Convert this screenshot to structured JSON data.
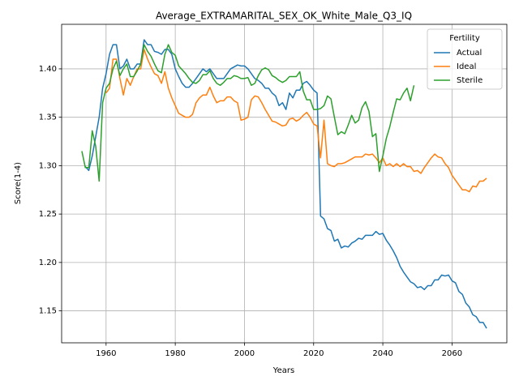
{
  "chart_data": {
    "type": "line",
    "title": "Average_EXTRAMARITAL_SEX_OK_White_Male_Q3_IQ",
    "xlabel": "Years",
    "ylabel": "Score(1-4)",
    "legend_title": "Fertility",
    "legend": "upper right",
    "grid": true,
    "xlim": [
      1947.15,
      2075.85
    ],
    "ylim": [
      1.117,
      1.446
    ],
    "xticks": [
      1960,
      1980,
      2000,
      2020,
      2040,
      2060
    ],
    "yticks": [
      1.15,
      {
        "value": 1.2,
        "label": "1.20"
      },
      1.25,
      {
        "value": 1.3,
        "label": "1.30"
      },
      1.35,
      {
        "value": 1.4,
        "label": "1.40"
      }
    ],
    "series": [
      {
        "name": "Actual",
        "color": "#1f77b4",
        "x": [
          1954,
          1955,
          1956,
          1957,
          1958,
          1959,
          1960,
          1961,
          1962,
          1963,
          1964,
          1965,
          1966,
          1967,
          1968,
          1969,
          1970,
          1971,
          1972,
          1973,
          1974,
          1975,
          1976,
          1977,
          1978,
          1979,
          1980,
          1981,
          1982,
          1983,
          1984,
          1985,
          1986,
          1987,
          1988,
          1989,
          1990,
          1991,
          1992,
          1993,
          1994,
          1995,
          1996,
          1997,
          1998,
          1999,
          2000,
          2001,
          2002,
          2003,
          2004,
          2005,
          2006,
          2007,
          2008,
          2009,
          2010,
          2011,
          2012,
          2013,
          2014,
          2015,
          2016,
          2017,
          2018,
          2019,
          2020,
          2021,
          2022,
          2023,
          2024,
          2025,
          2026,
          2027,
          2028,
          2029,
          2030,
          2031,
          2032,
          2033,
          2034,
          2035,
          2036,
          2037,
          2038,
          2039,
          2040,
          2041,
          2042,
          2043,
          2044,
          2045,
          2046,
          2047,
          2048,
          2049,
          2050,
          2051,
          2052,
          2053,
          2054,
          2055,
          2056,
          2057,
          2058,
          2059,
          2060,
          2061,
          2062,
          2063,
          2064,
          2065,
          2066,
          2067,
          2068,
          2069,
          2070
        ],
        "values": [
          1.299,
          1.295,
          1.31,
          1.33,
          1.35,
          1.38,
          1.395,
          1.415,
          1.425,
          1.425,
          1.4,
          1.403,
          1.41,
          1.4,
          1.4,
          1.405,
          1.405,
          1.43,
          1.425,
          1.425,
          1.418,
          1.417,
          1.415,
          1.42,
          1.42,
          1.415,
          1.4,
          1.392,
          1.385,
          1.381,
          1.381,
          1.385,
          1.39,
          1.395,
          1.4,
          1.397,
          1.4,
          1.395,
          1.39,
          1.39,
          1.39,
          1.395,
          1.4,
          1.402,
          1.404,
          1.403,
          1.403,
          1.4,
          1.395,
          1.39,
          1.388,
          1.385,
          1.38,
          1.38,
          1.375,
          1.372,
          1.362,
          1.365,
          1.358,
          1.375,
          1.37,
          1.378,
          1.378,
          1.385,
          1.387,
          1.383,
          1.378,
          1.375,
          1.248,
          1.245,
          1.235,
          1.233,
          1.222,
          1.224,
          1.215,
          1.217,
          1.216,
          1.22,
          1.222,
          1.225,
          1.224,
          1.228,
          1.228,
          1.228,
          1.232,
          1.229,
          1.23,
          1.223,
          1.218,
          1.212,
          1.205,
          1.196,
          1.19,
          1.185,
          1.18,
          1.178,
          1.174,
          1.175,
          1.172,
          1.176,
          1.176,
          1.182,
          1.182,
          1.187,
          1.186,
          1.187,
          1.181,
          1.179,
          1.17,
          1.167,
          1.158,
          1.154,
          1.146,
          1.144,
          1.138,
          1.138,
          1.132
        ]
      },
      {
        "name": "Ideal",
        "color": "#ff7f0e",
        "x": [
          1960,
          1961,
          1962,
          1963,
          1964,
          1965,
          1966,
          1967,
          1968,
          1969,
          1970,
          1971,
          1972,
          1973,
          1974,
          1975,
          1976,
          1977,
          1978,
          1979,
          1980,
          1981,
          1982,
          1983,
          1984,
          1985,
          1986,
          1987,
          1988,
          1989,
          1990,
          1991,
          1992,
          1993,
          1994,
          1995,
          1996,
          1997,
          1998,
          1999,
          2000,
          2001,
          2002,
          2003,
          2004,
          2005,
          2006,
          2007,
          2008,
          2009,
          2010,
          2011,
          2012,
          2013,
          2014,
          2015,
          2016,
          2017,
          2018,
          2019,
          2020,
          2021,
          2022,
          2023,
          2024,
          2025,
          2026,
          2027,
          2028,
          2029,
          2030,
          2031,
          2032,
          2033,
          2034,
          2035,
          2036,
          2037,
          2038,
          2039,
          2040,
          2041,
          2042,
          2043,
          2044,
          2045,
          2046,
          2047,
          2048,
          2049,
          2050,
          2051,
          2052,
          2053,
          2054,
          2055,
          2056,
          2057,
          2058,
          2059,
          2060,
          2061,
          2062,
          2063,
          2064,
          2065,
          2066,
          2067,
          2068,
          2069,
          2070
        ],
        "values": [
          1.375,
          1.38,
          1.41,
          1.41,
          1.39,
          1.373,
          1.39,
          1.383,
          1.392,
          1.4,
          1.4,
          1.42,
          1.41,
          1.402,
          1.395,
          1.393,
          1.385,
          1.397,
          1.38,
          1.37,
          1.362,
          1.354,
          1.352,
          1.35,
          1.35,
          1.353,
          1.365,
          1.37,
          1.373,
          1.373,
          1.381,
          1.372,
          1.365,
          1.367,
          1.367,
          1.371,
          1.371,
          1.367,
          1.365,
          1.347,
          1.348,
          1.35,
          1.368,
          1.372,
          1.371,
          1.365,
          1.358,
          1.352,
          1.346,
          1.345,
          1.343,
          1.341,
          1.342,
          1.348,
          1.349,
          1.346,
          1.348,
          1.352,
          1.355,
          1.35,
          1.343,
          1.341,
          1.308,
          1.347,
          1.302,
          1.3,
          1.299,
          1.302,
          1.302,
          1.303,
          1.305,
          1.307,
          1.309,
          1.309,
          1.309,
          1.312,
          1.311,
          1.312,
          1.308,
          1.303,
          1.308,
          1.3,
          1.302,
          1.299,
          1.302,
          1.299,
          1.302,
          1.299,
          1.299,
          1.294,
          1.295,
          1.292,
          1.298,
          1.303,
          1.308,
          1.312,
          1.309,
          1.308,
          1.302,
          1.298,
          1.29,
          1.285,
          1.28,
          1.275,
          1.275,
          1.273,
          1.279,
          1.278,
          1.284,
          1.284,
          1.287
        ]
      },
      {
        "name": "Sterile",
        "color": "#2ca02c",
        "x": [
          1953,
          1954,
          1955,
          1956,
          1957,
          1958,
          1959,
          1960,
          1961,
          1962,
          1963,
          1964,
          1965,
          1966,
          1967,
          1968,
          1969,
          1970,
          1971,
          1972,
          1973,
          1974,
          1975,
          1976,
          1977,
          1978,
          1979,
          1980,
          1981,
          1982,
          1983,
          1984,
          1985,
          1986,
          1987,
          1988,
          1989,
          1990,
          1991,
          1992,
          1993,
          1994,
          1995,
          1996,
          1997,
          1998,
          1999,
          2000,
          2001,
          2002,
          2003,
          2004,
          2005,
          2006,
          2007,
          2008,
          2009,
          2010,
          2011,
          2012,
          2013,
          2014,
          2015,
          2016,
          2017,
          2018,
          2019,
          2020,
          2021,
          2022,
          2023,
          2024,
          2025,
          2026,
          2027,
          2028,
          2029,
          2030,
          2031,
          2032,
          2033,
          2034,
          2035,
          2036,
          2037,
          2038,
          2039,
          2040,
          2041,
          2042,
          2043,
          2044,
          2045,
          2046,
          2047,
          2048,
          2049
        ],
        "values": [
          1.315,
          1.298,
          1.298,
          1.336,
          1.32,
          1.284,
          1.365,
          1.38,
          1.385,
          1.4,
          1.408,
          1.393,
          1.4,
          1.405,
          1.392,
          1.392,
          1.398,
          1.405,
          1.425,
          1.418,
          1.413,
          1.405,
          1.398,
          1.396,
          1.415,
          1.425,
          1.417,
          1.414,
          1.403,
          1.399,
          1.395,
          1.39,
          1.386,
          1.385,
          1.388,
          1.394,
          1.394,
          1.398,
          1.39,
          1.385,
          1.383,
          1.386,
          1.39,
          1.39,
          1.393,
          1.392,
          1.39,
          1.39,
          1.391,
          1.383,
          1.385,
          1.393,
          1.399,
          1.401,
          1.399,
          1.393,
          1.391,
          1.388,
          1.386,
          1.388,
          1.392,
          1.392,
          1.392,
          1.397,
          1.377,
          1.368,
          1.368,
          1.358,
          1.358,
          1.359,
          1.362,
          1.372,
          1.369,
          1.35,
          1.332,
          1.335,
          1.333,
          1.342,
          1.352,
          1.344,
          1.347,
          1.36,
          1.366,
          1.356,
          1.33,
          1.333,
          1.294,
          1.31,
          1.328,
          1.34,
          1.355,
          1.369,
          1.368,
          1.375,
          1.38,
          1.367,
          1.383
        ]
      }
    ]
  }
}
